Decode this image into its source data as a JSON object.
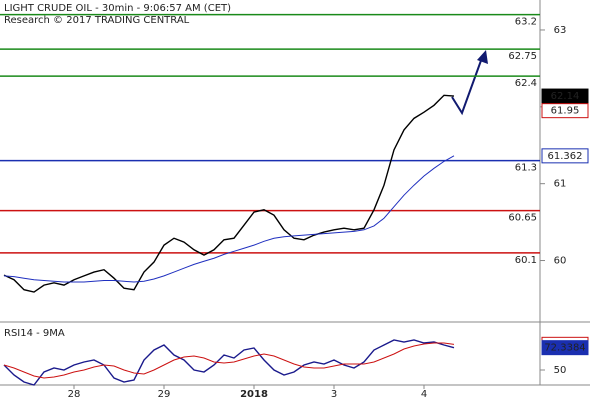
{
  "chart_data": [
    {
      "type": "line",
      "title": "LIGHT CRUDE OIL - 30min - 9:06:57 AM (CET)",
      "subtitle": "Research © 2017 TRADING CENTRAL",
      "categories": [
        null,
        null,
        null,
        null,
        null,
        null,
        null,
        "28",
        null,
        null,
        null,
        null,
        null,
        null,
        null,
        null,
        "29",
        null,
        null,
        null,
        null,
        null,
        null,
        null,
        null,
        "2018",
        null,
        null,
        null,
        null,
        null,
        null,
        null,
        "3",
        null,
        null,
        null,
        null,
        null,
        null,
        null,
        null,
        "4",
        null,
        null,
        null
      ],
      "series": [
        {
          "color": "#000000",
          "values": [
            59.81,
            59.75,
            59.62,
            59.59,
            59.68,
            59.71,
            59.68,
            59.75,
            59.8,
            59.85,
            59.88,
            59.77,
            59.64,
            59.62,
            59.85,
            59.98,
            60.2,
            60.29,
            60.24,
            60.14,
            60.07,
            60.14,
            60.27,
            60.29,
            60.46,
            60.63,
            60.66,
            60.59,
            60.4,
            60.29,
            60.27,
            60.33,
            60.37,
            60.4,
            60.42,
            60.4,
            60.42,
            60.66,
            60.98,
            61.44,
            61.7,
            61.85,
            61.93,
            62.02,
            62.15,
            62.14
          ]
        },
        {
          "color": "#1f2fbf",
          "values": [
            59.8,
            59.79,
            59.77,
            59.75,
            59.74,
            59.73,
            59.72,
            59.72,
            59.72,
            59.73,
            59.74,
            59.74,
            59.73,
            59.72,
            59.73,
            59.76,
            59.8,
            59.85,
            59.9,
            59.95,
            59.99,
            60.03,
            60.08,
            60.12,
            60.16,
            60.2,
            60.25,
            60.29,
            60.31,
            60.32,
            60.33,
            60.34,
            60.35,
            60.36,
            60.37,
            60.38,
            60.4,
            60.45,
            60.55,
            60.7,
            60.85,
            60.98,
            61.1,
            61.2,
            61.29,
            61.362
          ]
        }
      ],
      "ylim": [
        59.2,
        63.39
      ],
      "yticks": [
        60,
        61,
        62,
        63
      ],
      "levels": [
        {
          "value": 63.2,
          "color": "#1a8a1a"
        },
        {
          "value": 62.75,
          "color": "#1a8a1a"
        },
        {
          "value": 62.4,
          "color": "#1a8a1a"
        },
        {
          "value": 61.3,
          "color": "#1a2fb0"
        },
        {
          "value": 60.65,
          "color": "#cc1111"
        },
        {
          "value": 60.1,
          "color": "#cc1111"
        }
      ],
      "markers": [
        {
          "value": 62.14,
          "color": "#000000",
          "style": "filled"
        },
        {
          "value": 61.95,
          "color": "#cc1111",
          "style": "outline"
        },
        {
          "value": 61.362,
          "color": "#1a2fb0",
          "style": "outline"
        }
      ]
    },
    {
      "type": "line",
      "title": "RSI14 - 9MA",
      "series": [
        {
          "color": "#1a1a8c",
          "values": [
            55,
            45,
            38,
            35,
            48,
            52,
            50,
            55,
            58,
            60,
            55,
            42,
            38,
            40,
            60,
            70,
            75,
            65,
            60,
            50,
            48,
            55,
            65,
            62,
            70,
            72,
            60,
            50,
            45,
            48,
            55,
            58,
            56,
            60,
            55,
            52,
            58,
            70,
            75,
            80,
            78,
            80,
            77,
            78,
            75,
            72.3384
          ]
        },
        {
          "color": "#cc1111",
          "values": [
            55,
            52,
            48,
            44,
            42,
            43,
            45,
            48,
            50,
            53,
            55,
            54,
            50,
            47,
            46,
            50,
            55,
            60,
            63,
            64,
            62,
            58,
            57,
            58,
            61,
            64,
            66,
            64,
            60,
            56,
            53,
            52,
            52,
            54,
            56,
            56,
            56,
            58,
            62,
            66,
            71,
            74,
            76,
            77,
            77,
            75.6726
          ]
        }
      ],
      "ylim": [
        35,
        95
      ],
      "yticks": [
        50
      ],
      "markers": [
        {
          "value": 75.6726,
          "color": "#cc1111",
          "style": "outline"
        },
        {
          "value": 72.3384,
          "color": "#1a2fb0",
          "style": "filled"
        }
      ]
    }
  ]
}
